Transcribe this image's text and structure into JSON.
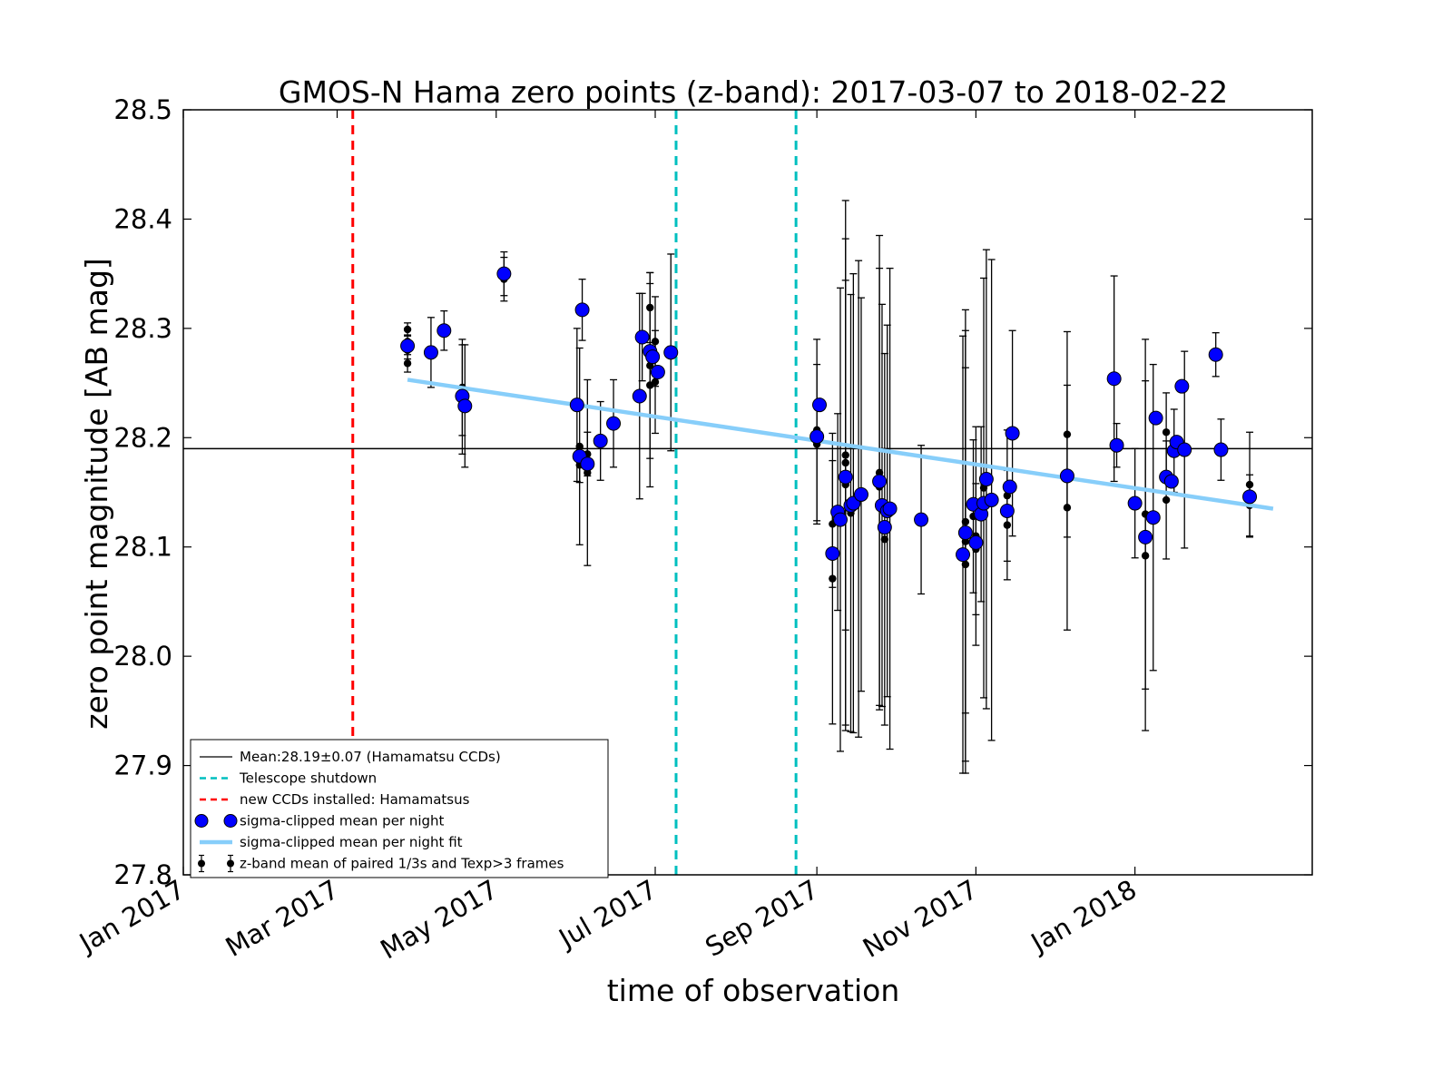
{
  "chart_data": {
    "type": "scatter",
    "title": "GMOS-N Hama zero points (z-band): 2017-03-07 to 2018-02-22",
    "xlabel": "time of observation",
    "ylabel": "zero point magnitude [AB mag]",
    "ylim": [
      27.8,
      28.5
    ],
    "xlim": [
      "2017-01-01",
      "2018-03-10"
    ],
    "yticks": [
      "27.8",
      "27.9",
      "28.0",
      "28.1",
      "28.2",
      "28.3",
      "28.4",
      "28.5"
    ],
    "xticks": [
      {
        "date": "2017-01-01",
        "label": "Jan 2017"
      },
      {
        "date": "2017-03-01",
        "label": "Mar 2017"
      },
      {
        "date": "2017-05-01",
        "label": "May 2017"
      },
      {
        "date": "2017-07-01",
        "label": "Jul 2017"
      },
      {
        "date": "2017-09-01",
        "label": "Sep 2017"
      },
      {
        "date": "2017-11-01",
        "label": "Nov 2017"
      },
      {
        "date": "2018-01-01",
        "label": "Jan 2018"
      }
    ],
    "grid": false,
    "legend_position": "lower-left",
    "mean_line": {
      "y": 28.19,
      "color": "#000000",
      "label": "Mean:28.19±0.07 (Hamamatsu CCDs)"
    },
    "vlines": [
      {
        "date": "2017-03-07",
        "color": "#ff0000",
        "label": "new CCDs installed: Hamamatsus"
      },
      {
        "date": "2017-07-09",
        "color": "#00bfbf",
        "label": "Telescope shutdown"
      },
      {
        "date": "2017-08-24",
        "color": "#00bfbf",
        "label": "Telescope shutdown"
      }
    ],
    "fit_line": {
      "color": "#87cefa",
      "label": "sigma-clipped mean per night fit",
      "points": [
        [
          "2017-03-28",
          28.253
        ],
        [
          "2018-02-23",
          28.135
        ]
      ]
    },
    "series": [
      {
        "name": "sigma-clipped mean per night",
        "color": "#0000ff",
        "points": [
          {
            "x": "2017-03-28",
            "y": 28.284
          },
          {
            "x": "2017-04-06",
            "y": 28.278
          },
          {
            "x": "2017-04-11",
            "y": 28.298
          },
          {
            "x": "2017-04-18",
            "y": 28.238
          },
          {
            "x": "2017-04-19",
            "y": 28.229
          },
          {
            "x": "2017-05-04",
            "y": 28.35
          },
          {
            "x": "2017-06-01",
            "y": 28.23
          },
          {
            "x": "2017-06-02",
            "y": 28.183
          },
          {
            "x": "2017-06-03",
            "y": 28.317
          },
          {
            "x": "2017-06-05",
            "y": 28.176
          },
          {
            "x": "2017-06-10",
            "y": 28.197
          },
          {
            "x": "2017-06-15",
            "y": 28.213
          },
          {
            "x": "2017-06-25",
            "y": 28.238
          },
          {
            "x": "2017-06-26",
            "y": 28.292
          },
          {
            "x": "2017-06-29",
            "y": 28.279
          },
          {
            "x": "2017-06-30",
            "y": 28.274
          },
          {
            "x": "2017-07-02",
            "y": 28.26
          },
          {
            "x": "2017-07-07",
            "y": 28.278
          },
          {
            "x": "2017-09-01",
            "y": 28.201
          },
          {
            "x": "2017-09-02",
            "y": 28.23
          },
          {
            "x": "2017-09-07",
            "y": 28.094
          },
          {
            "x": "2017-09-09",
            "y": 28.132
          },
          {
            "x": "2017-09-10",
            "y": 28.125
          },
          {
            "x": "2017-09-12",
            "y": 28.164
          },
          {
            "x": "2017-09-14",
            "y": 28.138
          },
          {
            "x": "2017-09-15",
            "y": 28.14
          },
          {
            "x": "2017-09-18",
            "y": 28.148
          },
          {
            "x": "2017-09-25",
            "y": 28.16
          },
          {
            "x": "2017-09-26",
            "y": 28.138
          },
          {
            "x": "2017-09-27",
            "y": 28.118
          },
          {
            "x": "2017-09-28",
            "y": 28.133
          },
          {
            "x": "2017-09-29",
            "y": 28.135
          },
          {
            "x": "2017-10-11",
            "y": 28.125
          },
          {
            "x": "2017-10-27",
            "y": 28.093
          },
          {
            "x": "2017-10-28",
            "y": 28.113
          },
          {
            "x": "2017-10-31",
            "y": 28.139
          },
          {
            "x": "2017-11-01",
            "y": 28.104
          },
          {
            "x": "2017-11-03",
            "y": 28.13
          },
          {
            "x": "2017-11-04",
            "y": 28.14
          },
          {
            "x": "2017-11-05",
            "y": 28.162
          },
          {
            "x": "2017-11-07",
            "y": 28.143
          },
          {
            "x": "2017-11-13",
            "y": 28.133
          },
          {
            "x": "2017-11-14",
            "y": 28.155
          },
          {
            "x": "2017-11-15",
            "y": 28.204
          },
          {
            "x": "2017-12-06",
            "y": 28.165
          },
          {
            "x": "2017-12-24",
            "y": 28.254
          },
          {
            "x": "2017-12-25",
            "y": 28.193
          },
          {
            "x": "2018-01-01",
            "y": 28.14
          },
          {
            "x": "2018-01-05",
            "y": 28.109
          },
          {
            "x": "2018-01-08",
            "y": 28.127
          },
          {
            "x": "2018-01-09",
            "y": 28.218
          },
          {
            "x": "2018-01-13",
            "y": 28.164
          },
          {
            "x": "2018-01-15",
            "y": 28.16
          },
          {
            "x": "2018-01-16",
            "y": 28.188
          },
          {
            "x": "2018-01-17",
            "y": 28.196
          },
          {
            "x": "2018-01-19",
            "y": 28.247
          },
          {
            "x": "2018-01-20",
            "y": 28.189
          },
          {
            "x": "2018-02-01",
            "y": 28.276
          },
          {
            "x": "2018-02-03",
            "y": 28.189
          },
          {
            "x": "2018-02-14",
            "y": 28.146
          }
        ]
      },
      {
        "name": "z-band mean of paired 1/3s and Texp>3 frames",
        "color": "#000000",
        "points": [
          {
            "x": "2017-03-28",
            "y": 28.299,
            "err": 0.006
          },
          {
            "x": "2017-03-28",
            "y": 28.268,
            "err": 0.008
          },
          {
            "x": "2017-03-28",
            "y": 28.288,
            "err": 0.006
          },
          {
            "x": "2017-03-28",
            "y": 28.28,
            "err": 0.008
          },
          {
            "x": "2017-04-06",
            "y": 28.278,
            "err": 0.032
          },
          {
            "x": "2017-04-11",
            "y": 28.298,
            "err": 0.018
          },
          {
            "x": "2017-04-18",
            "y": 28.246,
            "err": 0.044
          },
          {
            "x": "2017-04-18",
            "y": 28.235,
            "err": 0.05
          },
          {
            "x": "2017-04-19",
            "y": 28.229,
            "err": 0.056
          },
          {
            "x": "2017-05-04",
            "y": 28.35,
            "err": 0.02
          },
          {
            "x": "2017-05-04",
            "y": 28.345,
            "err": 0.02
          },
          {
            "x": "2017-06-01",
            "y": 28.23,
            "err": 0.07
          },
          {
            "x": "2017-06-02",
            "y": 28.192,
            "err": 0.09
          },
          {
            "x": "2017-06-02",
            "y": 28.175,
            "err": 0.016
          },
          {
            "x": "2017-06-03",
            "y": 28.317,
            "err": 0.028
          },
          {
            "x": "2017-06-05",
            "y": 28.185,
            "err": 0.02
          },
          {
            "x": "2017-06-05",
            "y": 28.168,
            "err": 0.085
          },
          {
            "x": "2017-06-10",
            "y": 28.197,
            "err": 0.036
          },
          {
            "x": "2017-06-15",
            "y": 28.213,
            "err": 0.04
          },
          {
            "x": "2017-06-25",
            "y": 28.238,
            "err": 0.094
          },
          {
            "x": "2017-06-26",
            "y": 28.292,
            "err": 0.04
          },
          {
            "x": "2017-06-29",
            "y": 28.319,
            "err": 0.032
          },
          {
            "x": "2017-06-29",
            "y": 28.266,
            "err": 0.085
          },
          {
            "x": "2017-06-29",
            "y": 28.248,
            "err": 0.093
          },
          {
            "x": "2017-07-01",
            "y": 28.288,
            "err": 0.041
          },
          {
            "x": "2017-07-01",
            "y": 28.251,
            "err": 0.047
          },
          {
            "x": "2017-07-07",
            "y": 28.278,
            "err": 0.09
          },
          {
            "x": "2017-09-01",
            "y": 28.207,
            "err": 0.083
          },
          {
            "x": "2017-09-01",
            "y": 28.194,
            "err": 0.073
          },
          {
            "x": "2017-09-07",
            "y": 28.121,
            "err": 0.058
          },
          {
            "x": "2017-09-07",
            "y": 28.071,
            "err": 0.133
          },
          {
            "x": "2017-09-09",
            "y": 28.132,
            "err": 0.09
          },
          {
            "x": "2017-09-10",
            "y": 28.125,
            "err": 0.212
          },
          {
            "x": "2017-09-12",
            "y": 28.184,
            "err": 0.16
          },
          {
            "x": "2017-09-12",
            "y": 28.177,
            "err": 0.24
          },
          {
            "x": "2017-09-12",
            "y": 28.157,
            "err": 0.225
          },
          {
            "x": "2017-09-14",
            "y": 28.131,
            "err": 0.2
          },
          {
            "x": "2017-09-15",
            "y": 28.14,
            "err": 0.21
          },
          {
            "x": "2017-09-17",
            "y": 28.144,
            "err": 0.218
          },
          {
            "x": "2017-09-18",
            "y": 28.148,
            "err": 0.18
          },
          {
            "x": "2017-09-25",
            "y": 28.168,
            "err": 0.217
          },
          {
            "x": "2017-09-25",
            "y": 28.155,
            "err": 0.2
          },
          {
            "x": "2017-09-26",
            "y": 28.138,
            "err": 0.184
          },
          {
            "x": "2017-09-27",
            "y": 28.107,
            "err": 0.17
          },
          {
            "x": "2017-09-28",
            "y": 28.133,
            "err": 0.17
          },
          {
            "x": "2017-09-29",
            "y": 28.135,
            "err": 0.22
          },
          {
            "x": "2017-10-11",
            "y": 28.125,
            "err": 0.068
          },
          {
            "x": "2017-10-27",
            "y": 28.093,
            "err": 0.2
          },
          {
            "x": "2017-10-28",
            "y": 28.123,
            "err": 0.175
          },
          {
            "x": "2017-10-28",
            "y": 28.105,
            "err": 0.212
          },
          {
            "x": "2017-10-28",
            "y": 28.084,
            "err": 0.18
          },
          {
            "x": "2017-10-31",
            "y": 28.128,
            "err": 0.07
          },
          {
            "x": "2017-11-01",
            "y": 28.11,
            "err": 0.1
          },
          {
            "x": "2017-11-01",
            "y": 28.098,
            "err": 0.06
          },
          {
            "x": "2017-11-03",
            "y": 28.13,
            "err": 0.08
          },
          {
            "x": "2017-11-04",
            "y": 28.154,
            "err": 0.192
          },
          {
            "x": "2017-11-05",
            "y": 28.162,
            "err": 0.21
          },
          {
            "x": "2017-11-07",
            "y": 28.143,
            "err": 0.22
          },
          {
            "x": "2017-11-13",
            "y": 28.12,
            "err": 0.05
          },
          {
            "x": "2017-11-13",
            "y": 28.147,
            "err": 0.06
          },
          {
            "x": "2017-11-15",
            "y": 28.204,
            "err": 0.094
          },
          {
            "x": "2017-12-06",
            "y": 28.203,
            "err": 0.094
          },
          {
            "x": "2017-12-06",
            "y": 28.136,
            "err": 0.112
          },
          {
            "x": "2017-12-24",
            "y": 28.254,
            "err": 0.094
          },
          {
            "x": "2017-12-25",
            "y": 28.193,
            "err": 0.02
          },
          {
            "x": "2018-01-01",
            "y": 28.14,
            "err": 0.05
          },
          {
            "x": "2018-01-05",
            "y": 28.13,
            "err": 0.16
          },
          {
            "x": "2018-01-05",
            "y": 28.092,
            "err": 0.16
          },
          {
            "x": "2018-01-08",
            "y": 28.127,
            "err": 0.14
          },
          {
            "x": "2018-01-13",
            "y": 28.205,
            "err": 0.036
          },
          {
            "x": "2018-01-13",
            "y": 28.143,
            "err": 0.054
          },
          {
            "x": "2018-01-16",
            "y": 28.188,
            "err": 0.038
          },
          {
            "x": "2018-01-20",
            "y": 28.189,
            "err": 0.09
          },
          {
            "x": "2018-02-01",
            "y": 28.276,
            "err": 0.02
          },
          {
            "x": "2018-02-03",
            "y": 28.189,
            "err": 0.028
          },
          {
            "x": "2018-02-14",
            "y": 28.157,
            "err": 0.048
          },
          {
            "x": "2018-02-14",
            "y": 28.138,
            "err": 0.028
          }
        ]
      }
    ],
    "legend": [
      {
        "kind": "line",
        "color": "#000000",
        "dash": false,
        "label": "Mean:28.19±0.07 (Hamamatsu CCDs)"
      },
      {
        "kind": "line",
        "color": "#00bfbf",
        "dash": true,
        "label": "Telescope shutdown"
      },
      {
        "kind": "line",
        "color": "#ff0000",
        "dash": true,
        "label": "new CCDs installed: Hamamatsus"
      },
      {
        "kind": "marker-big",
        "color": "#0000ff",
        "label": "sigma-clipped mean per night"
      },
      {
        "kind": "line-thick",
        "color": "#87cefa",
        "label": "sigma-clipped mean per night fit"
      },
      {
        "kind": "marker-err",
        "color": "#000000",
        "label": "z-band mean of paired 1/3s and Texp>3 frames"
      }
    ]
  }
}
